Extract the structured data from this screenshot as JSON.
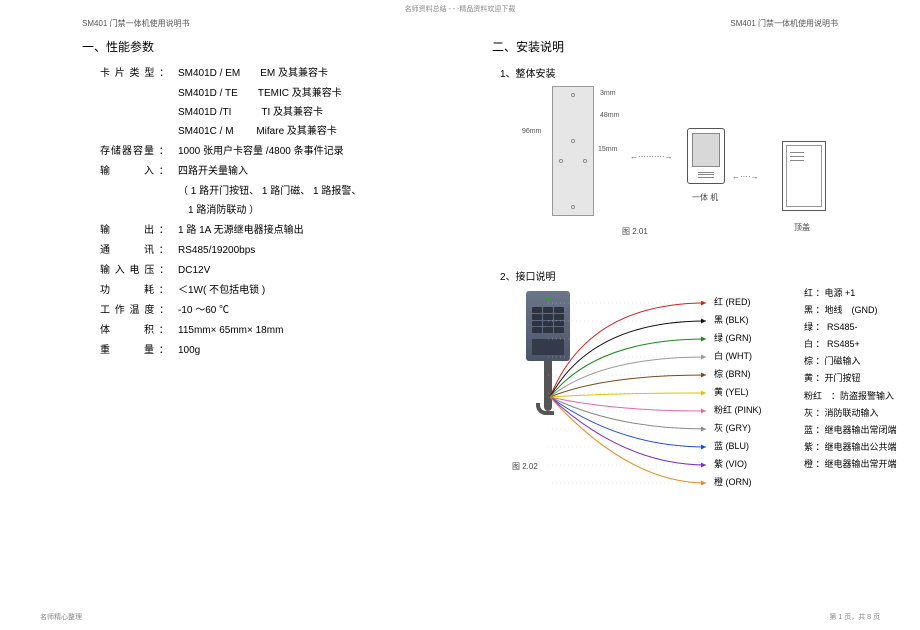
{
  "topBanner": "名师资料总结 - - -精品资料欢迎下载",
  "header": "SM401  门禁一体机使用说明书",
  "footerLeft": "名师精心整理",
  "footerRight": "第 1 页，共 8 页",
  "left": {
    "h1": "一、性能参数",
    "specs": [
      {
        "label": "卡 片 类 型 ：",
        "val": "SM401D / EM　　EM  及其兼容卡"
      },
      {
        "label": "",
        "val": "SM401D / TE　　TEMIC  及其兼容卡"
      },
      {
        "label": "",
        "val": "SM401D /TI　　　TI  及其兼容卡"
      },
      {
        "label": "",
        "val": "SM401C / M　　 Mifare  及其兼容卡"
      },
      {
        "label": "存储器容量 ：",
        "val": "1000  张用户卡容量   /4800  条事件记录"
      },
      {
        "label": "输　　　入 ：",
        "val": "四路开关量输入"
      },
      {
        "label": "",
        "val": "（ 1 路开门按钮、 1 路门磁、 1 路报警、"
      },
      {
        "label": "",
        "val": "　1 路消防联动 ）"
      },
      {
        "label": "输　　　出 ：",
        "val": "1 路 1A 无源继电器接点输出"
      },
      {
        "label": "通　　　讯 ：",
        "val": "RS485/19200bps"
      },
      {
        "label": "输 入 电 压 ：",
        "val": "DC12V"
      },
      {
        "label": "功　　　耗 ：",
        "val": "＜1W( 不包括电锁  )"
      },
      {
        "label": "工 作 温 度 ：",
        "val": "-10 ～60 ℃"
      },
      {
        "label": "体　　　积 ：",
        "val": "115mm×  65mm×  18mm"
      },
      {
        "label": "重　　　量 ：",
        "val": "100g"
      }
    ]
  },
  "right": {
    "h1": "二、安装说明",
    "h2a": "1、整体安装",
    "h2b": "2、接口说明",
    "fig201": {
      "dims": {
        "top": "3mm",
        "mid": "48mm",
        "h": "96mm",
        "bot": "15mm"
      },
      "labels": {
        "device": "一体 机",
        "cover": "顶盖",
        "caption": "图 2.01"
      }
    },
    "fig202": {
      "caption": "图 2.02",
      "wires": [
        {
          "color": "#d91e1e",
          "label": "红 (RED)"
        },
        {
          "color": "#111111",
          "label": "黑 (BLK)"
        },
        {
          "color": "#1a8a1a",
          "label": "绿 (GRN)"
        },
        {
          "color": "#f5f5f5",
          "label": "白 (WHT)",
          "stroke": "#999"
        },
        {
          "color": "#7a4a1f",
          "label": "棕 (BRN)"
        },
        {
          "color": "#e6c200",
          "label": "黄 (YEL)"
        },
        {
          "color": "#e66aa8",
          "label": "粉红 (PINK)"
        },
        {
          "color": "#8a8a8a",
          "label": "灰 (GRY)"
        },
        {
          "color": "#1e4ed9",
          "label": "蓝 (BLU)"
        },
        {
          "color": "#7a2fc9",
          "label": "紫 (VIO)"
        },
        {
          "color": "#e68a1e",
          "label": "橙 (ORN)"
        }
      ],
      "legend": [
        "红 ：电源  +1",
        "黑 ：地线　(GND)",
        "绿 ： RS485-",
        "白 ： RS485+",
        "棕 ：门磁输入",
        "黄 ：开门按钮",
        "粉红　：防盗报警输入",
        "灰 ：消防联动输入",
        "蓝 ：继电器输出常闭端",
        "紫 ：继电器输出公共端",
        "橙 ：继电器输出常开端"
      ]
    }
  }
}
